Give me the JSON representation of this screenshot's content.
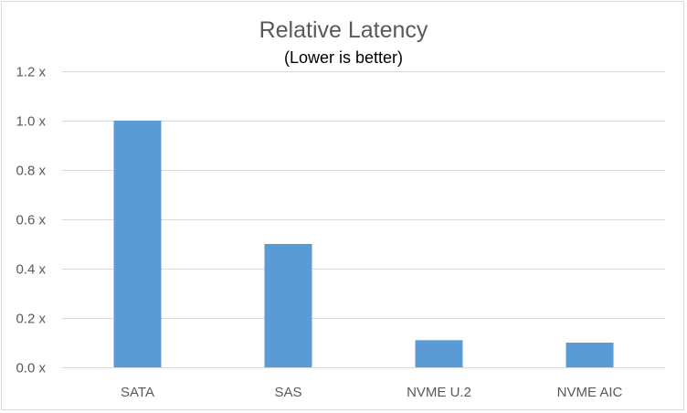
{
  "chart_data": {
    "type": "bar",
    "title": "Relative Latency",
    "subtitle": "(Lower is better)",
    "categories": [
      "SATA",
      "SAS",
      "NVME U.2",
      "NVME AIC"
    ],
    "values": [
      1.0,
      0.5,
      0.11,
      0.1
    ],
    "ylim": [
      0,
      1.2
    ],
    "yticks": [
      0,
      0.2,
      0.4,
      0.6,
      0.8,
      1.0,
      1.2
    ],
    "ytick_labels": [
      "0.0 x",
      "0.2 x",
      "0.4 x",
      "0.6 x",
      "0.8 x",
      "1.0 x",
      "1.2 x"
    ],
    "xlabel": "",
    "ylabel": "",
    "grid": true,
    "bar_color": "#5b9bd5"
  }
}
